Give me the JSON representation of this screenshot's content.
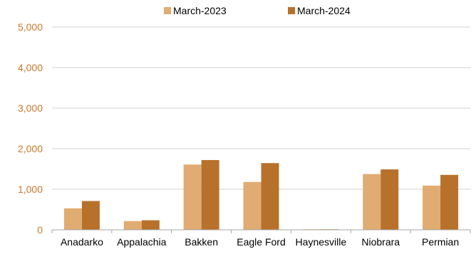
{
  "chart_data": {
    "type": "bar",
    "title": "",
    "xlabel": "",
    "ylabel": "",
    "categories": [
      "Anadarko",
      "Appalachia",
      "Bakken",
      "Eagle Ford",
      "Haynesville",
      "Niobrara",
      "Permian"
    ],
    "series": [
      {
        "name": "March-2023",
        "color": "#E0AC72",
        "values": [
          530,
          215,
          1610,
          1180,
          10,
          1375,
          1090
        ]
      },
      {
        "name": "March-2024",
        "color": "#B8712B",
        "values": [
          710,
          235,
          1720,
          1645,
          12,
          1490,
          1355
        ]
      }
    ],
    "ylim": [
      0,
      5000
    ],
    "yticks": [
      "0",
      "1,000",
      "2,000",
      "3,000",
      "4,000",
      "5,000"
    ],
    "ytick_values": [
      0,
      1000,
      2000,
      3000,
      4000,
      5000
    ],
    "ytick_color": "#C8782C",
    "grid": true,
    "legend": "top"
  }
}
